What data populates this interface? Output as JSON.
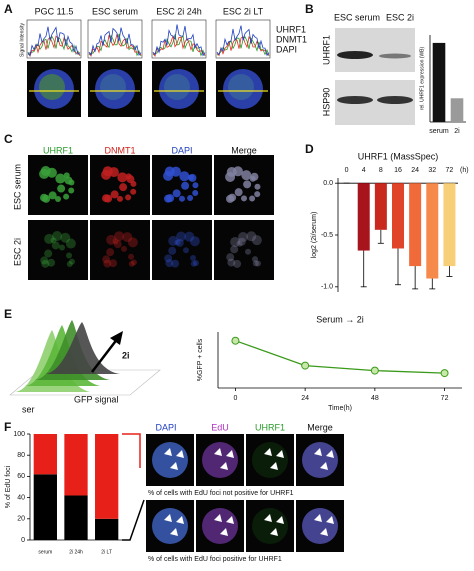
{
  "panels": {
    "a": {
      "label": "A",
      "columns": [
        "PGC 11.5",
        "ESC serum",
        "ESC 2i 24h",
        "ESC 2i LT"
      ],
      "y_label": "Signal Intensity",
      "legend": [
        {
          "name": "UHRF1",
          "color": "#2a9a2a"
        },
        {
          "name": "DNMT1",
          "color": "#e03020"
        },
        {
          "name": "DAPI",
          "color": "#2040c0"
        }
      ]
    },
    "b": {
      "label": "B",
      "lanes": [
        "ESC serum",
        "ESC 2i"
      ],
      "blots": [
        "UHRF1",
        "HSP90"
      ]
    },
    "c": {
      "label": "C",
      "columns": [
        "UHRF1",
        "DNMT1",
        "DAPI",
        "Merge"
      ],
      "rows": [
        "ESC serum",
        "ESC 2i"
      ]
    },
    "d": {
      "label": "D"
    },
    "e": {
      "label": "E",
      "histogram_labels": [
        "2i",
        "ser"
      ],
      "x_label": "GFP signal"
    },
    "f": {
      "label": "F",
      "columns": [
        "DAPI",
        "EdU",
        "UHRF1",
        "Merge"
      ]
    }
  },
  "chart_data": [
    {
      "type": "bar",
      "y_label": "rel. UHRF1 expression (WB)",
      "categories": [
        "serum",
        "2i"
      ],
      "values": [
        1.0,
        0.3
      ],
      "colors": [
        "#111111",
        "#9a9a9a"
      ],
      "ylim": [
        0,
        1.1
      ]
    },
    {
      "type": "bar",
      "title": "UHRF1 (MassSpec)",
      "x_unit": "(h)",
      "y_label": "log2 (2i/serum)",
      "categories": [
        "0",
        "4",
        "8",
        "16",
        "24",
        "32",
        "72"
      ],
      "values": [
        0,
        -0.65,
        -0.45,
        -0.63,
        -0.8,
        -0.92,
        -0.8
      ],
      "errors": [
        0,
        0.35,
        0.13,
        0.35,
        0.22,
        0.1,
        0.1
      ],
      "colors": [
        "#8e1020",
        "#a8141c",
        "#c8281e",
        "#e0452a",
        "#f06a3a",
        "#f58a4a",
        "#f7cf78"
      ],
      "ylim": [
        -1.05,
        0.05
      ],
      "yticks": [
        {
          "value": 0,
          "label": "0.0"
        },
        -0.5,
        {
          "value": -1,
          "label": "-1.0"
        }
      ]
    },
    {
      "type": "line",
      "title": "Serum → 2i",
      "x_label": "Time(h)",
      "y_label": "%GFP + cells",
      "x": [
        0,
        24,
        48,
        72
      ],
      "values": [
        38,
        18,
        14,
        12
      ],
      "errors": [
        2.5,
        1,
        1,
        1
      ],
      "color": "#3a9a1a",
      "xlim": [
        -6,
        78
      ],
      "xticks": [
        0,
        24,
        48,
        72
      ],
      "ylim": [
        0,
        45
      ]
    },
    {
      "type": "stacked_bar",
      "y_label": "% of EdU foci",
      "categories": [
        "serum",
        "2i 24h",
        "2i LT"
      ],
      "series": [
        {
          "name": "% of cells with EdU foci positive for UHRF1",
          "color": "#000000",
          "values": [
            62,
            42,
            20
          ]
        },
        {
          "name": "% of cells with EdU foci not positive for UHRF1",
          "color": "#e8201a",
          "values": [
            38,
            58,
            80
          ]
        }
      ],
      "ylim": [
        0,
        100
      ],
      "yticks": [
        0,
        20,
        40,
        60,
        80,
        100
      ]
    }
  ]
}
